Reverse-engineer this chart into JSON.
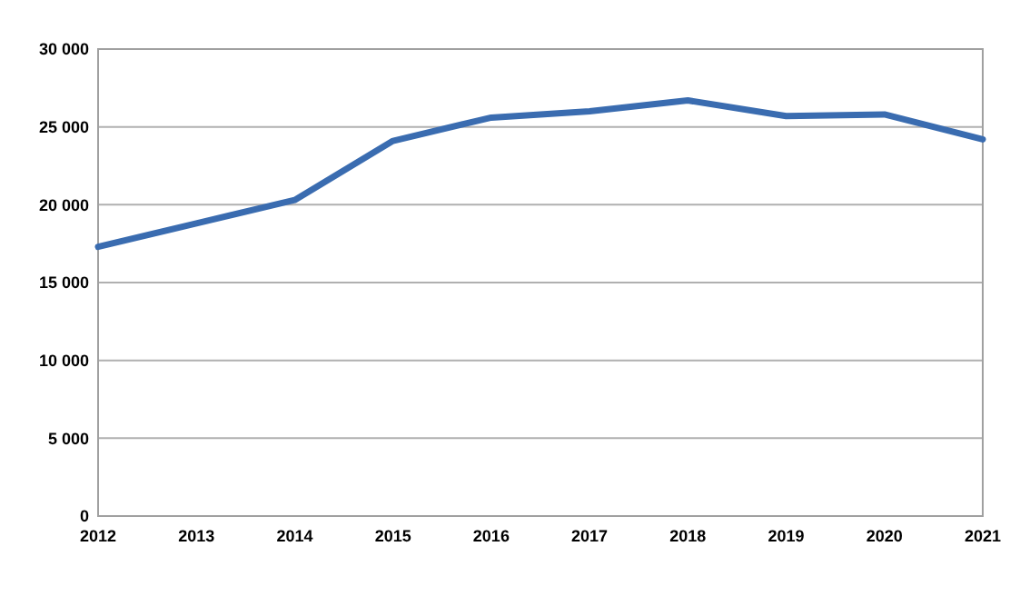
{
  "chart_data": {
    "type": "line",
    "x": [
      2012,
      2013,
      2014,
      2015,
      2016,
      2017,
      2018,
      2019,
      2020,
      2021
    ],
    "series": [
      {
        "color": "#3a6cb0",
        "values": [
          17300,
          18800,
          20300,
          24100,
          25600,
          26000,
          26700,
          25700,
          25800,
          24200
        ]
      }
    ],
    "xlim": [
      2012,
      2021
    ],
    "xticks": [
      2012,
      2013,
      2014,
      2015,
      2016,
      2017,
      2018,
      2019,
      2020,
      2021
    ],
    "ylim": [
      0,
      30000
    ],
    "yticks": [
      {
        "value": 0,
        "label": "0"
      },
      {
        "value": 5000,
        "label": "5 000"
      },
      {
        "value": 10000,
        "label": "10 000"
      },
      {
        "value": 15000,
        "label": "15 000"
      },
      {
        "value": 20000,
        "label": "20 000"
      },
      {
        "value": 25000,
        "label": "25 000"
      },
      {
        "value": 30000,
        "label": "30 000"
      }
    ],
    "grid": "y",
    "marker": "none",
    "line_style": "solid"
  }
}
